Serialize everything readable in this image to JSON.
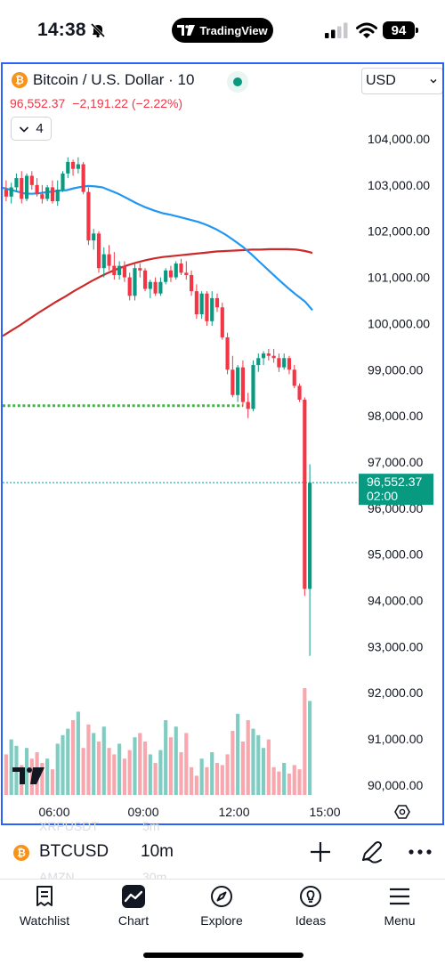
{
  "status_bar": {
    "time": "14:38",
    "center_pill": "TradingView",
    "battery": "94",
    "icons": [
      "bell-slash-icon",
      "signal-icon",
      "wifi-icon",
      "battery-icon"
    ]
  },
  "chart_header": {
    "symbol_title": "Bitcoin / U.S. Dollar · 10",
    "coin_icon": "bitcoin-icon",
    "currency": "USD",
    "last_price": "96,552.37",
    "change": "−2,191.22 (−2.22%)",
    "indicator_count": "4"
  },
  "chart_data": {
    "type": "candlestick",
    "title": "Bitcoin / U.S. Dollar · 10",
    "x_ticks": [
      "06:00",
      "09:00",
      "12:00",
      "15:00"
    ],
    "y_ticks": [
      "104,000.00",
      "103,000.00",
      "102,000.00",
      "101,000.00",
      "100,000.00",
      "99,000.00",
      "98,000.00",
      "97,000.00",
      "96,000.00",
      "95,000.00",
      "94,000.00",
      "93,000.00",
      "92,000.00",
      "91,000.00",
      "90,000.00"
    ],
    "y_range": [
      89800,
      104750
    ],
    "last_price_label": "96,552.37",
    "countdown_label": "02:00",
    "last_price": 96552.37,
    "support_level": 98220,
    "colors": {
      "up": "#089981",
      "down": "#f23645",
      "ma_fast": "#2196f3",
      "ma_slow": "#cc2a2a",
      "support": "#4caf50",
      "up_volume": "#7fcdc2",
      "down_volume": "#f7a7ad"
    },
    "candles": [
      [
        102900,
        103100,
        102650,
        102750
      ],
      [
        102750,
        103050,
        102600,
        102950
      ],
      [
        102950,
        103250,
        102850,
        103150
      ],
      [
        103150,
        103300,
        102600,
        102700
      ],
      [
        102700,
        103250,
        102650,
        103200
      ],
      [
        103200,
        103300,
        102900,
        103000
      ],
      [
        103000,
        103150,
        102750,
        102800
      ],
      [
        102800,
        103000,
        102600,
        102700
      ],
      [
        102700,
        103000,
        102650,
        102950
      ],
      [
        102950,
        103100,
        102600,
        102650
      ],
      [
        102650,
        103100,
        102550,
        102900
      ],
      [
        102900,
        103300,
        102850,
        103250
      ],
      [
        103250,
        103600,
        103150,
        103500
      ],
      [
        103500,
        103550,
        103200,
        103350
      ],
      [
        103350,
        103600,
        103250,
        103450
      ],
      [
        103450,
        103500,
        102800,
        102850
      ],
      [
        102850,
        102950,
        101700,
        101800
      ],
      [
        101800,
        102050,
        101600,
        101950
      ],
      [
        101950,
        102000,
        101100,
        101200
      ],
      [
        101200,
        101650,
        101000,
        101500
      ],
      [
        101500,
        101700,
        101150,
        101250
      ],
      [
        101250,
        101550,
        100950,
        101050
      ],
      [
        101050,
        101350,
        100950,
        101250
      ],
      [
        101250,
        101350,
        100900,
        101000
      ],
      [
        101000,
        101100,
        100500,
        100600
      ],
      [
        100600,
        101300,
        100500,
        101200
      ],
      [
        101200,
        101300,
        101000,
        101150
      ],
      [
        101150,
        101200,
        100700,
        100750
      ],
      [
        100750,
        100950,
        100550,
        100900
      ],
      [
        100900,
        101000,
        100600,
        100650
      ],
      [
        100650,
        101000,
        100600,
        100900
      ],
      [
        100900,
        101200,
        100850,
        101150
      ],
      [
        101150,
        101250,
        100900,
        101000
      ],
      [
        101000,
        101350,
        100950,
        101300
      ],
      [
        101300,
        101400,
        101050,
        101100
      ],
      [
        101100,
        101350,
        100950,
        101050
      ],
      [
        101050,
        101150,
        100600,
        100700
      ],
      [
        100700,
        100850,
        100100,
        100200
      ],
      [
        100200,
        100700,
        100100,
        100650
      ],
      [
        100650,
        100700,
        99950,
        100050
      ],
      [
        100050,
        100700,
        99950,
        100550
      ],
      [
        100550,
        100650,
        100250,
        100350
      ],
      [
        100350,
        100450,
        99650,
        99700
      ],
      [
        99700,
        99800,
        98900,
        99000
      ],
      [
        99000,
        99300,
        98400,
        98450
      ],
      [
        98450,
        99100,
        98300,
        99050
      ],
      [
        99050,
        99200,
        98200,
        98300
      ],
      [
        98300,
        98500,
        97950,
        98150
      ],
      [
        98150,
        99200,
        98100,
        99100
      ],
      [
        99100,
        99350,
        98950,
        99250
      ],
      [
        99250,
        99400,
        99100,
        99350
      ],
      [
        99350,
        99450,
        99200,
        99300
      ],
      [
        99300,
        99450,
        99150,
        99250
      ],
      [
        99250,
        99350,
        98950,
        99050
      ],
      [
        99050,
        99350,
        99000,
        99250
      ],
      [
        99250,
        99300,
        98900,
        99000
      ],
      [
        99000,
        99100,
        98600,
        98650
      ],
      [
        98650,
        98700,
        98300,
        98350
      ],
      [
        98350,
        98400,
        94100,
        94250
      ],
      [
        94250,
        96950,
        92800,
        96550
      ]
    ],
    "volumes": [
      0.38,
      0.52,
      0.46,
      0.28,
      0.44,
      0.34,
      0.4,
      0.3,
      0.34,
      0.24,
      0.48,
      0.56,
      0.62,
      0.7,
      0.78,
      0.44,
      0.66,
      0.58,
      0.5,
      0.64,
      0.44,
      0.38,
      0.48,
      0.34,
      0.42,
      0.54,
      0.58,
      0.5,
      0.38,
      0.3,
      0.42,
      0.7,
      0.54,
      0.64,
      0.4,
      0.58,
      0.26,
      0.18,
      0.34,
      0.26,
      0.4,
      0.3,
      0.28,
      0.38,
      0.6,
      0.76,
      0.5,
      0.7,
      0.62,
      0.56,
      0.44,
      0.52,
      0.26,
      0.22,
      0.3,
      0.2,
      0.28,
      0.24,
      1.0,
      0.88
    ],
    "ma_fast": [
      [
        0,
        102940
      ],
      [
        8,
        102900
      ],
      [
        16,
        102860
      ],
      [
        24,
        102820
      ],
      [
        32,
        102810
      ],
      [
        40,
        102820
      ],
      [
        48,
        102840
      ],
      [
        56,
        102860
      ],
      [
        64,
        102880
      ],
      [
        72,
        102890
      ],
      [
        80,
        102930
      ],
      [
        88,
        102960
      ],
      [
        96,
        102980
      ],
      [
        104,
        102970
      ],
      [
        112,
        102950
      ],
      [
        120,
        102890
      ],
      [
        130,
        102810
      ],
      [
        140,
        102710
      ],
      [
        150,
        102610
      ],
      [
        160,
        102520
      ],
      [
        170,
        102450
      ],
      [
        180,
        102390
      ],
      [
        190,
        102350
      ],
      [
        200,
        102300
      ],
      [
        210,
        102250
      ],
      [
        220,
        102200
      ],
      [
        230,
        102130
      ],
      [
        240,
        102040
      ],
      [
        250,
        101930
      ],
      [
        260,
        101800
      ],
      [
        270,
        101660
      ],
      [
        280,
        101490
      ],
      [
        290,
        101310
      ],
      [
        300,
        101130
      ],
      [
        310,
        100950
      ],
      [
        320,
        100780
      ],
      [
        330,
        100620
      ],
      [
        340,
        100470
      ],
      [
        348,
        100290
      ]
    ],
    "ma_slow": [
      [
        0,
        99730
      ],
      [
        10,
        99850
      ],
      [
        20,
        99970
      ],
      [
        30,
        100100
      ],
      [
        40,
        100230
      ],
      [
        50,
        100350
      ],
      [
        60,
        100470
      ],
      [
        70,
        100580
      ],
      [
        80,
        100700
      ],
      [
        90,
        100810
      ],
      [
        100,
        100920
      ],
      [
        110,
        101020
      ],
      [
        120,
        101110
      ],
      [
        130,
        101190
      ],
      [
        140,
        101260
      ],
      [
        150,
        101320
      ],
      [
        160,
        101370
      ],
      [
        170,
        101410
      ],
      [
        180,
        101440
      ],
      [
        190,
        101460
      ],
      [
        200,
        101480
      ],
      [
        210,
        101500
      ],
      [
        220,
        101520
      ],
      [
        230,
        101540
      ],
      [
        240,
        101560
      ],
      [
        250,
        101570
      ],
      [
        260,
        101580
      ],
      [
        270,
        101590
      ],
      [
        280,
        101600
      ],
      [
        290,
        101600
      ],
      [
        300,
        101610
      ],
      [
        310,
        101610
      ],
      [
        320,
        101610
      ],
      [
        330,
        101600
      ],
      [
        340,
        101570
      ],
      [
        348,
        101530
      ]
    ]
  },
  "ticker_bar": {
    "symbol": "BTCUSD",
    "interval": "10m",
    "ghost_symbol_1": "XRPUSDT",
    "ghost_interval_1": "5m",
    "ghost_symbol_2": "AMZN",
    "ghost_interval_2": "30m"
  },
  "tabs": [
    {
      "label": "Watchlist",
      "icon": "watchlist-icon"
    },
    {
      "label": "Chart",
      "icon": "chart-icon",
      "active": true
    },
    {
      "label": "Explore",
      "icon": "compass-icon"
    },
    {
      "label": "Ideas",
      "icon": "lightbulb-icon"
    },
    {
      "label": "Menu",
      "icon": "hamburger-icon"
    }
  ]
}
